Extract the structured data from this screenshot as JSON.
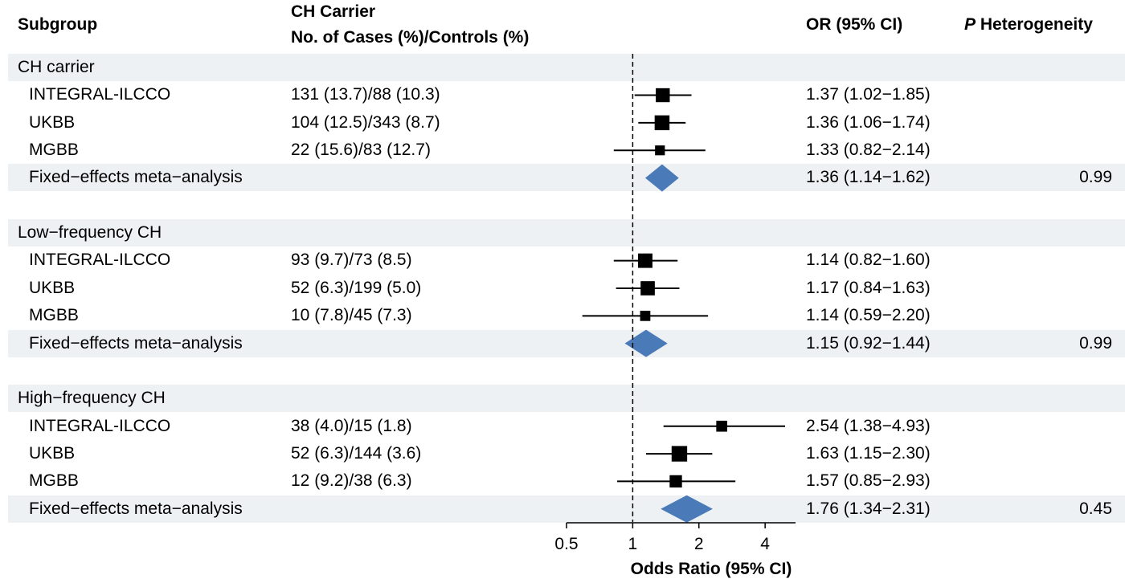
{
  "headers": {
    "subgroup": "Subgroup",
    "carrier_line1": "CH Carrier",
    "carrier_line2": "No. of Cases (%)/Controls (%)",
    "or": "OR (95% CI)",
    "p_italic": "P",
    "p_rest": " Heterogeneity"
  },
  "rows": [
    {
      "type": "group",
      "label": "CH carrier"
    },
    {
      "type": "study",
      "label": "INTEGRAL-ILCCO",
      "counts": "131 (13.7)/88 (10.3)",
      "or_text": "1.37 (1.02−1.85)"
    },
    {
      "type": "study",
      "label": "UKBB",
      "counts": "104 (12.5)/343 (8.7)",
      "or_text": "1.36 (1.06−1.74)"
    },
    {
      "type": "study",
      "label": "MGBB",
      "counts": "22 (15.6)/83 (12.7)",
      "or_text": "1.33 (0.82−2.14)"
    },
    {
      "type": "meta",
      "label": "Fixed−effects meta−analysis",
      "or_text": "1.36 (1.14−1.62)",
      "p": "0.99"
    },
    {
      "type": "spacer"
    },
    {
      "type": "group",
      "label": "Low−frequency CH"
    },
    {
      "type": "study",
      "label": "INTEGRAL-ILCCO",
      "counts": "93 (9.7)/73 (8.5)",
      "or_text": "1.14 (0.82−1.60)"
    },
    {
      "type": "study",
      "label": "UKBB",
      "counts": "52 (6.3)/199 (5.0)",
      "or_text": "1.17 (0.84−1.63)"
    },
    {
      "type": "study",
      "label": "MGBB",
      "counts": "10 (7.8)/45 (7.3)",
      "or_text": "1.14 (0.59−2.20)"
    },
    {
      "type": "meta",
      "label": "Fixed−effects meta−analysis",
      "or_text": "1.15 (0.92−1.44)",
      "p": "0.99"
    },
    {
      "type": "spacer"
    },
    {
      "type": "group",
      "label": "High−frequency CH"
    },
    {
      "type": "study",
      "label": "INTEGRAL-ILCCO",
      "counts": "38 (4.0)/15 (1.8)",
      "or_text": "2.54 (1.38−4.93)"
    },
    {
      "type": "study",
      "label": "UKBB",
      "counts": "52 (6.3)/144 (3.6)",
      "or_text": "1.63 (1.15−2.30)"
    },
    {
      "type": "study",
      "label": "MGBB",
      "counts": "12 (9.2)/38 (6.3)",
      "or_text": "1.57 (0.85−2.93)"
    },
    {
      "type": "meta",
      "label": "Fixed−effects meta−analysis",
      "or_text": "1.76 (1.34−2.31)",
      "p": "0.45"
    }
  ],
  "chart_data": {
    "type": "forest",
    "xlabel": "Odds Ratio (95% CI)",
    "x_scale": "log2",
    "xlim": [
      0.5,
      5.5
    ],
    "ticks": [
      0.5,
      1,
      2,
      4
    ],
    "tick_labels": [
      "0.5",
      "1",
      "2",
      "4"
    ],
    "reference_line": 1,
    "estimates": [
      {
        "subgroup": "CH carrier",
        "study": "INTEGRAL-ILCCO",
        "or": 1.37,
        "lo": 1.02,
        "hi": 1.85,
        "weight": 0.4
      },
      {
        "subgroup": "CH carrier",
        "study": "UKBB",
        "or": 1.36,
        "lo": 1.06,
        "hi": 1.74,
        "weight": 0.48
      },
      {
        "subgroup": "CH carrier",
        "study": "MGBB",
        "or": 1.33,
        "lo": 0.82,
        "hi": 2.14,
        "weight": 0.12
      },
      {
        "subgroup": "CH carrier",
        "study": "Fixed-effects meta-analysis",
        "or": 1.36,
        "lo": 1.14,
        "hi": 1.62,
        "meta": true
      },
      {
        "subgroup": "Low-frequency CH",
        "study": "INTEGRAL-ILCCO",
        "or": 1.14,
        "lo": 0.82,
        "hi": 1.6,
        "weight": 0.44
      },
      {
        "subgroup": "Low-frequency CH",
        "study": "UKBB",
        "or": 1.17,
        "lo": 0.84,
        "hi": 1.63,
        "weight": 0.42
      },
      {
        "subgroup": "Low-frequency CH",
        "study": "MGBB",
        "or": 1.14,
        "lo": 0.59,
        "hi": 2.2,
        "weight": 0.14
      },
      {
        "subgroup": "Low-frequency CH",
        "study": "Fixed-effects meta-analysis",
        "or": 1.15,
        "lo": 0.92,
        "hi": 1.44,
        "meta": true
      },
      {
        "subgroup": "High-frequency CH",
        "study": "INTEGRAL-ILCCO",
        "or": 2.54,
        "lo": 1.38,
        "hi": 4.93,
        "weight": 0.18
      },
      {
        "subgroup": "High-frequency CH",
        "study": "UKBB",
        "or": 1.63,
        "lo": 1.15,
        "hi": 2.3,
        "weight": 0.55
      },
      {
        "subgroup": "High-frequency CH",
        "study": "MGBB",
        "or": 1.57,
        "lo": 0.85,
        "hi": 2.93,
        "weight": 0.27
      },
      {
        "subgroup": "High-frequency CH",
        "study": "Fixed-effects meta-analysis",
        "or": 1.76,
        "lo": 1.34,
        "hi": 2.31,
        "meta": true
      }
    ],
    "colors": {
      "meta_diamond": "#4a7ab8",
      "point": "#000000",
      "band": "#eef1f3"
    }
  }
}
